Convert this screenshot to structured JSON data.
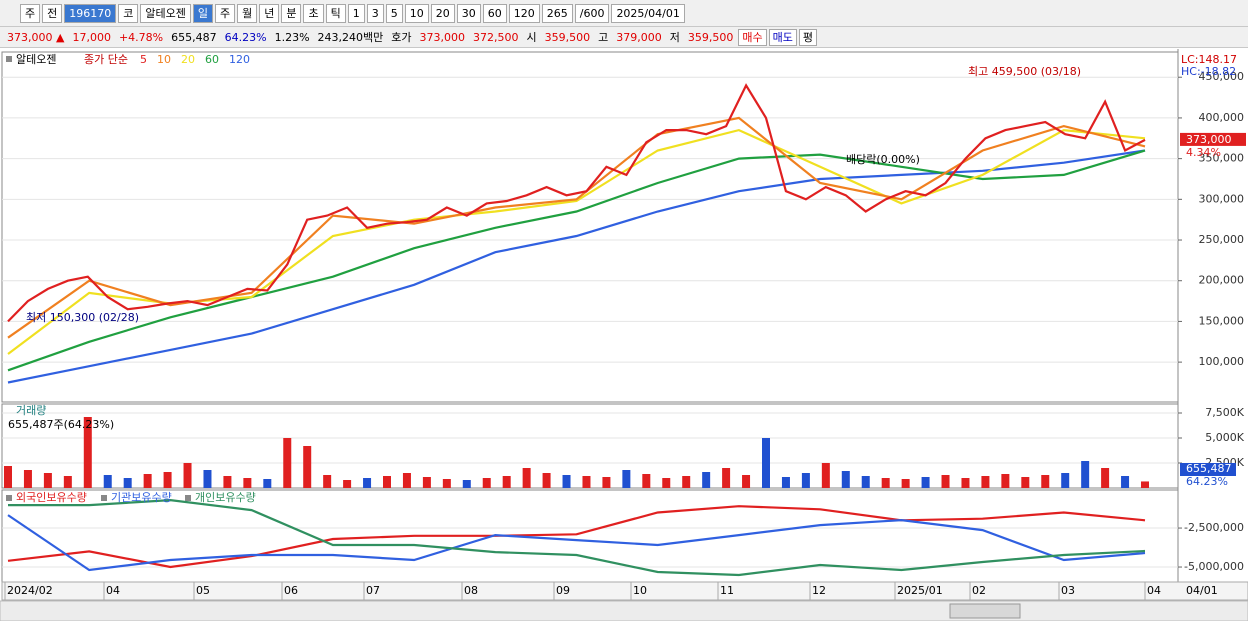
{
  "toolbar": {
    "items": [
      "주",
      "전",
      "196170",
      "코",
      "알테오젠",
      "일",
      "주",
      "월",
      "년",
      "분",
      "초",
      "틱",
      "1",
      "3",
      "5",
      "10",
      "20",
      "30",
      "60",
      "120",
      "265",
      "/600",
      "2025/04/01"
    ]
  },
  "quote": {
    "items": [
      {
        "text": "373,000 ▲",
        "color": "#e00000"
      },
      {
        "text": "17,000",
        "color": "#e00000"
      },
      {
        "text": "+4.78%",
        "color": "#e00000"
      },
      {
        "text": "655,487",
        "color": "#000000"
      },
      {
        "text": "64.23%",
        "color": "#0000c0"
      },
      {
        "text": "1.23%",
        "color": "#000000"
      },
      {
        "text": "243,240백만",
        "color": "#000000"
      },
      {
        "text": "호가",
        "color": "#000000"
      },
      {
        "text": "373,000",
        "color": "#e00000"
      },
      {
        "text": "372,500",
        "color": "#e00000"
      },
      {
        "text": "시",
        "color": "#000000"
      },
      {
        "text": "359,500",
        "color": "#e00000"
      },
      {
        "text": "고",
        "color": "#000000"
      },
      {
        "text": "379,000",
        "color": "#e00000"
      },
      {
        "text": "저",
        "color": "#000000"
      },
      {
        "text": "359,500",
        "color": "#e00000"
      },
      {
        "text": "매수",
        "color": "#e00000"
      },
      {
        "text": "매도",
        "color": "#0000c0"
      },
      {
        "text": "평",
        "color": "#000000"
      }
    ]
  },
  "chart_data": [
    {
      "type": "line",
      "title": "알테오젠",
      "subtitle": "종가 단순",
      "series": [
        {
          "name": "5",
          "color": "#e02020",
          "values": [
            150000,
            175000,
            190000,
            200000,
            205000,
            180000,
            165000,
            168000,
            172000,
            175000,
            170000,
            180000,
            190000,
            188000,
            220000,
            275000,
            280000,
            290000,
            265000,
            270000,
            272000,
            275000,
            290000,
            280000,
            295000,
            298000,
            305000,
            315000,
            305000,
            310000,
            340000,
            330000,
            370000,
            385000,
            385000,
            380000,
            390000,
            440000,
            400000,
            310000,
            300000,
            315000,
            305000,
            285000,
            300000,
            310000,
            305000,
            320000,
            350000,
            375000,
            385000,
            390000,
            395000,
            380000,
            375000,
            420000,
            360000,
            373000
          ]
        },
        {
          "name": "10",
          "color": "#f08020",
          "values": [
            130000,
            200000,
            170000,
            185000,
            280000,
            270000,
            290000,
            300000,
            380000,
            400000,
            320000,
            300000,
            360000,
            390000,
            365000
          ]
        },
        {
          "name": "20",
          "color": "#f0e020",
          "values": [
            110000,
            185000,
            172000,
            180000,
            255000,
            275000,
            285000,
            298000,
            360000,
            385000,
            340000,
            295000,
            330000,
            385000,
            375000
          ]
        },
        {
          "name": "60",
          "color": "#20a040",
          "values": [
            90000,
            125000,
            155000,
            180000,
            205000,
            240000,
            265000,
            285000,
            320000,
            350000,
            355000,
            340000,
            325000,
            330000,
            360000
          ]
        },
        {
          "name": "120",
          "color": "#3060e0",
          "values": [
            75000,
            95000,
            115000,
            135000,
            165000,
            195000,
            235000,
            255000,
            285000,
            310000,
            325000,
            330000,
            335000,
            345000,
            360000
          ]
        }
      ],
      "ylim": [
        51000,
        481000
      ],
      "yticks": [
        {
          "value": 100000,
          "label": "100,000"
        },
        {
          "value": 150000,
          "label": "150,000"
        },
        {
          "value": 200000,
          "label": "200,000"
        },
        {
          "value": 250000,
          "label": "250,000"
        },
        {
          "value": 300000,
          "label": "300,000"
        },
        {
          "value": 350000,
          "label": "350,000"
        },
        {
          "value": 400000,
          "label": "400,000"
        },
        {
          "value": 450000,
          "label": "450,000"
        }
      ],
      "annotations": {
        "high": "최고 459,500 (03/18)",
        "low": "최저 150,300 (02/28)",
        "ex_dividend": "배당락(0.00%)",
        "lc": "LC:148.17",
        "hc": "HC:-18.82",
        "last": {
          "value": 373000,
          "label": "373,000"
        },
        "rate": "4.34%"
      }
    },
    {
      "type": "bar",
      "title": "거래량",
      "subtitle": "655,487주(64.23%)",
      "values": [
        2200,
        1800,
        1500,
        1200,
        7100,
        1300,
        1000,
        1400,
        1600,
        2500,
        1800,
        1200,
        1000,
        900,
        5000,
        4200,
        1300,
        800,
        1000,
        1200,
        1500,
        1100,
        900,
        800,
        1000,
        1200,
        2000,
        1500,
        1300,
        1200,
        1100,
        1800,
        1400,
        1000,
        1200,
        1600,
        2000,
        1300,
        5000,
        1100,
        1500,
        2500,
        1700,
        1200,
        1000,
        900,
        1100,
        1300,
        1000,
        1200,
        1400,
        1100,
        1300,
        1500,
        2700,
        2000,
        1200,
        655
      ],
      "ylim": [
        0,
        8400
      ],
      "yticks": [
        {
          "value": 2500,
          "label": "2,500K"
        },
        {
          "value": 5000,
          "label": "5,000K"
        },
        {
          "value": 7500,
          "label": "7,500K"
        }
      ],
      "last_label": "655,487",
      "last_rate": "64.23%"
    },
    {
      "type": "line",
      "series": [
        {
          "name": "외국인보유수량",
          "color": "#e02020",
          "values": [
            -4600000,
            -4000000,
            -5000000,
            -4300000,
            -3200000,
            -3000000,
            -3000000,
            -2900000,
            -1500000,
            -1100000,
            -1300000,
            -2000000,
            -1900000,
            -1500000,
            -2000000
          ]
        },
        {
          "name": "기관보유수량",
          "color": "#3060e0",
          "values": [
            -1670000,
            -5190000,
            -4550000,
            -4230000,
            -4230000,
            -4550000,
            -2950000,
            -3270000,
            -3590000,
            -2950000,
            -2310000,
            -1990000,
            -2630000,
            -4550000,
            -4100000
          ]
        },
        {
          "name": "개인보유수량",
          "color": "#309060",
          "values": [
            -1030000,
            -1030000,
            -710000,
            -1350000,
            -3590000,
            -3590000,
            -4040000,
            -4230000,
            -5320000,
            -5510000,
            -4870000,
            -5190000,
            -4680000,
            -4230000,
            -3970000
          ]
        }
      ],
      "ylim": [
        -5960000,
        -60000
      ],
      "yticks": [
        {
          "value": -2500000,
          "label": "-2,500,000"
        },
        {
          "value": -5000000,
          "label": "-5,000,000"
        }
      ]
    }
  ],
  "x_axis": {
    "labels": [
      "2024/02",
      "04",
      "05",
      "06",
      "07",
      "08",
      "09",
      "10",
      "11",
      "12",
      "2025/01",
      "02",
      "03",
      "04"
    ],
    "current": "04/01"
  }
}
